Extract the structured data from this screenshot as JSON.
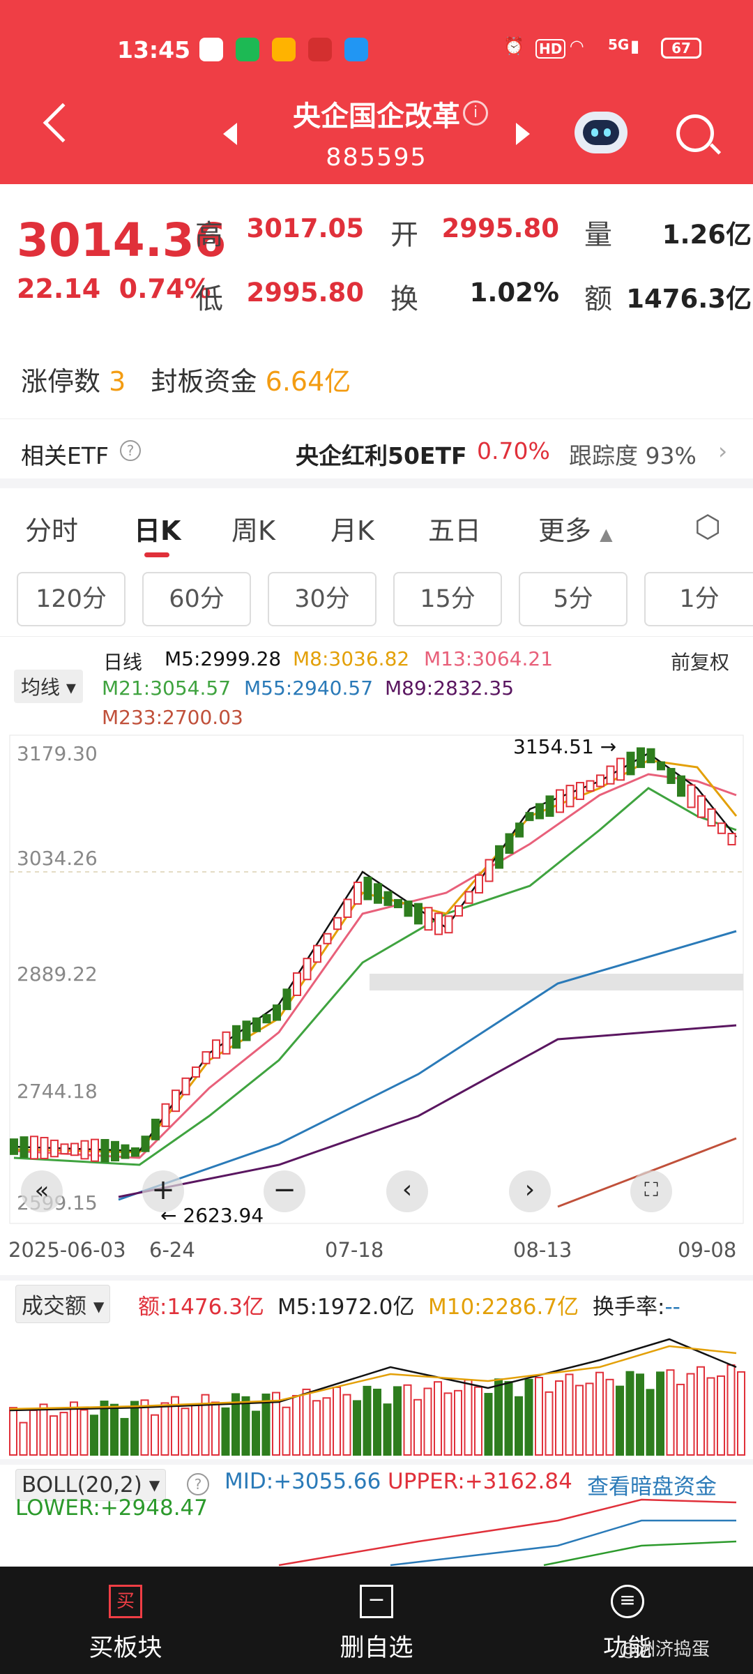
{
  "status_bar": {
    "time": "13:45",
    "battery": "67",
    "net": "5G",
    "hd": "HD"
  },
  "nav": {
    "title": "央企国企改革",
    "code": "885595",
    "info_icon": "i"
  },
  "quote": {
    "price": "3014.36",
    "change": "22.14",
    "change_pct": "0.74%",
    "high_label": "高",
    "high": "3017.05",
    "open_label": "开",
    "open": "2995.80",
    "vol_label": "量",
    "vol": "1.26亿",
    "low_label": "低",
    "low": "2995.80",
    "turnover_label": "换",
    "turnover": "1.02%",
    "amount_label": "额",
    "amount": "1476.3亿"
  },
  "limit": {
    "label": "涨停数",
    "count": "3",
    "seal_label": "封板资金",
    "seal": "6.64亿"
  },
  "etf": {
    "label": "相关ETF",
    "name": "央企红利50ETF",
    "pct": "0.70%",
    "track_label": "跟踪度",
    "track": "93%"
  },
  "tabs": [
    "分时",
    "日K",
    "周K",
    "月K",
    "五日",
    "更多"
  ],
  "minute_buttons": [
    "120分",
    "60分",
    "30分",
    "15分",
    "5分",
    "1分"
  ],
  "ma": {
    "selector": "均线",
    "line": "日线",
    "fq": "前复权",
    "m5": "M5:2999.28",
    "m8": "M8:3036.82",
    "m13": "M13:3064.21",
    "m21": "M21:3054.57",
    "m55": "M55:2940.57",
    "m89": "M89:2832.35",
    "m233": "M233:2700.03"
  },
  "chart_axis": {
    "y1": "3179.30",
    "y2": "3034.26",
    "y3": "2889.22",
    "y4": "2744.18",
    "y5": "2599.15",
    "high_mark": "3154.51",
    "low_mark": "2623.94"
  },
  "dates": {
    "d1": "2025-06-03",
    "d2": "6-24",
    "d3": "07-18",
    "d4": "08-13",
    "d5": "09-08"
  },
  "volume": {
    "selector": "成交额",
    "amount": "额:1476.3亿",
    "m5": "M5:1972.0亿",
    "m10": "M10:2286.7亿",
    "rate_label": "换手率:",
    "rate": "--"
  },
  "boll": {
    "selector": "BOLL(20,2)",
    "mid": "MID:+3055.66",
    "upper": "UPPER:+3162.84",
    "link": "查看暗盘资金",
    "lower": "LOWER:+2948.47"
  },
  "bottom": {
    "buy": "买板块",
    "buy_icon": "买",
    "del": "删自选",
    "func": "功能",
    "watermark": "@洲济捣蛋"
  },
  "colors": {
    "red": "#ef3e45",
    "up": "#e0303a",
    "down": "#2e7d1e",
    "orange": "#f39c12"
  }
}
